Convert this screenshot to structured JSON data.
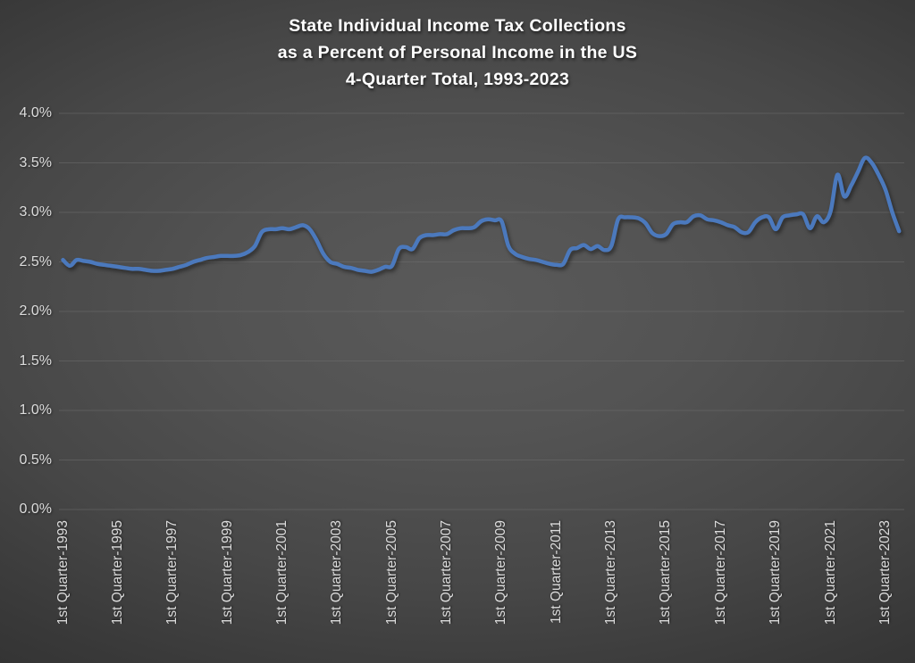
{
  "title": {
    "line1": "State Individual Income Tax Collections",
    "line2": "as a Percent of Personal Income in the US",
    "line3": "4-Quarter Total, 1993-2023"
  },
  "chart_data": {
    "type": "line",
    "title": "State Individual Income Tax Collections as a Percent of Personal Income in the US, 4-Quarter Total, 1993-2023",
    "xlabel": "",
    "ylabel": "",
    "ylim": [
      0.0,
      4.0
    ],
    "y_tick_step": 0.5,
    "grid": true,
    "legend": "none",
    "frequency": "quarterly",
    "x_start": "1st Quarter 1993",
    "x_end": "3rd Quarter 2023",
    "x_tick_labels": [
      "1st Quarter-1993",
      "1st Quarter-1995",
      "1st Quarter-1997",
      "1st Quarter-1999",
      "1st Quarter-2001",
      "1st Quarter-2003",
      "1st Quarter-2005",
      "1st Quarter-2007",
      "1st Quarter-2009",
      "1st Quarter-2011",
      "1st Quarter-2013",
      "1st Quarter-2015",
      "1st Quarter-2017",
      "1st Quarter-2019",
      "1st Quarter-2021",
      "1st Quarter-2023"
    ],
    "x_tick_every_n_points": 8,
    "y_tick_labels": [
      "0.0%",
      "0.5%",
      "1.0%",
      "1.5%",
      "2.0%",
      "2.5%",
      "3.0%",
      "3.5%",
      "4.0%"
    ],
    "y_tick_values": [
      0.0,
      0.5,
      1.0,
      1.5,
      2.0,
      2.5,
      3.0,
      3.5,
      4.0
    ],
    "series": [
      {
        "name": "State individual income tax collections, % of personal income (4-quarter total)",
        "color": "#4b79bd",
        "values_unit": "percent",
        "values": [
          2.52,
          2.46,
          2.52,
          2.51,
          2.5,
          2.48,
          2.47,
          2.46,
          2.45,
          2.44,
          2.43,
          2.43,
          2.42,
          2.41,
          2.41,
          2.42,
          2.43,
          2.45,
          2.47,
          2.5,
          2.52,
          2.54,
          2.55,
          2.56,
          2.56,
          2.56,
          2.57,
          2.6,
          2.66,
          2.8,
          2.83,
          2.83,
          2.84,
          2.83,
          2.85,
          2.87,
          2.83,
          2.72,
          2.58,
          2.5,
          2.48,
          2.45,
          2.44,
          2.42,
          2.41,
          2.4,
          2.42,
          2.45,
          2.46,
          2.63,
          2.65,
          2.63,
          2.74,
          2.77,
          2.77,
          2.78,
          2.78,
          2.82,
          2.84,
          2.84,
          2.85,
          2.91,
          2.93,
          2.92,
          2.91,
          2.66,
          2.58,
          2.55,
          2.53,
          2.52,
          2.5,
          2.48,
          2.47,
          2.48,
          2.62,
          2.64,
          2.67,
          2.63,
          2.66,
          2.62,
          2.66,
          2.93,
          2.95,
          2.95,
          2.94,
          2.89,
          2.79,
          2.76,
          2.78,
          2.88,
          2.9,
          2.9,
          2.96,
          2.97,
          2.93,
          2.92,
          2.9,
          2.87,
          2.85,
          2.8,
          2.8,
          2.9,
          2.95,
          2.95,
          2.83,
          2.95,
          2.97,
          2.98,
          2.98,
          2.84,
          2.96,
          2.9,
          3.01,
          3.38,
          3.16,
          3.27,
          3.41,
          3.55,
          3.5,
          3.38,
          3.23,
          3.0,
          2.81
        ]
      }
    ],
    "colors": {
      "background_center": "#5a5a5a",
      "background_edge": "#262626",
      "gridline": "#707070",
      "axis_label": "#dcdcdc",
      "title_text": "#ffffff",
      "line": "#4b79bd"
    }
  }
}
